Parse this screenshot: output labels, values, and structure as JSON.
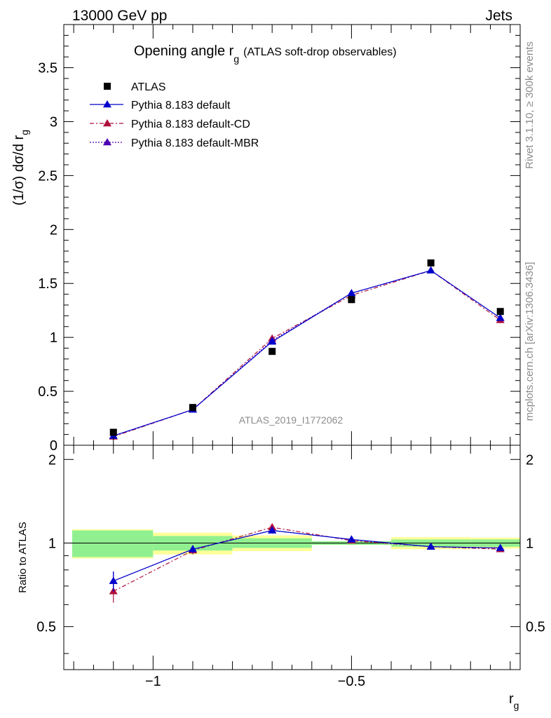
{
  "header": {
    "left": "13000 GeV pp",
    "right": "Jets"
  },
  "side_text": {
    "rivet": "Rivet 3.1.10, ≥ 300k events",
    "mcplots": "mcplots.cern.ch [arXiv:1306.3436]"
  },
  "watermark": "ATLAS_2019_I1772062",
  "chart_data": {
    "type": "line",
    "title": "Opening angle r",
    "title_sub": "g",
    "title_note": "(ATLAS soft-drop observables)",
    "ylabel_main": "(1/σ) dσ/d r",
    "ylabel_main_sub": "g",
    "ylabel_ratio": "Ratio to ATLAS",
    "xlabel": "r",
    "xlabel_sub": "g",
    "x_range": [
      -1.225,
      -0.075
    ],
    "main_y_range": [
      0,
      3.9
    ],
    "ratio_y_range": [
      0.35,
      2.25
    ],
    "x_ticks": [
      {
        "v": -1,
        "label": "−1"
      },
      {
        "v": -0.5,
        "label": "−0.5"
      }
    ],
    "main_y_ticks": [
      {
        "v": 0,
        "label": "0"
      },
      {
        "v": 0.5,
        "label": "0.5"
      },
      {
        "v": 1,
        "label": "1"
      },
      {
        "v": 1.5,
        "label": "1.5"
      },
      {
        "v": 2,
        "label": "2"
      },
      {
        "v": 2.5,
        "label": "2.5"
      },
      {
        "v": 3,
        "label": "3"
      },
      {
        "v": 3.5,
        "label": "3.5"
      }
    ],
    "ratio_y_ticks": [
      {
        "v": 0.5,
        "label": "0.5"
      },
      {
        "v": 1,
        "label": "1"
      },
      {
        "v": 2,
        "label": "2"
      }
    ],
    "bin_edges": [
      -1.225,
      -1.0,
      -0.8,
      -0.6,
      -0.4,
      -0.2,
      -0.075
    ],
    "x": [
      -1.1,
      -0.9,
      -0.7,
      -0.5,
      -0.3,
      -0.125
    ],
    "data": {
      "name": "ATLAS",
      "values": [
        0.12,
        0.35,
        0.87,
        1.35,
        1.69,
        1.24
      ],
      "band_inner": [
        0.11,
        0.06,
        0.04,
        0.015,
        0.03,
        0.03
      ],
      "band_outer": [
        0.12,
        0.09,
        0.065,
        0.015,
        0.05,
        0.045
      ]
    },
    "series": [
      {
        "name": "Pythia 8.183 default",
        "color": "#0000cc",
        "dash": "",
        "values": [
          0.087,
          0.33,
          0.96,
          1.41,
          1.62,
          1.18
        ],
        "ratio": [
          0.73,
          0.95,
          1.11,
          1.03,
          0.97,
          0.96
        ],
        "ratio_err": [
          0.06,
          0.03,
          0.02,
          0.015,
          0.01,
          0.015
        ]
      },
      {
        "name": "Pythia 8.183 default-CD",
        "color": "#b0103a",
        "dash": "6,3,2,3",
        "values": [
          0.08,
          0.33,
          0.99,
          1.39,
          1.62,
          1.16
        ],
        "ratio": [
          0.67,
          0.94,
          1.14,
          1.02,
          0.97,
          0.95
        ],
        "ratio_err": [
          0.06,
          0.03,
          0.02,
          0.015,
          0.01,
          0.015
        ]
      },
      {
        "name": "Pythia 8.183 default-MBR",
        "color": "#4b00b4",
        "dash": "2,2",
        "values": [
          0.087,
          0.33,
          0.97,
          1.41,
          1.62,
          1.18
        ],
        "ratio": [
          0.73,
          0.95,
          1.11,
          1.03,
          0.97,
          0.96
        ],
        "ratio_err": [
          0.06,
          0.03,
          0.02,
          0.015,
          0.01,
          0.015
        ]
      }
    ],
    "band_colors": {
      "inner": "#90f090",
      "outer": "#ffff99"
    }
  }
}
